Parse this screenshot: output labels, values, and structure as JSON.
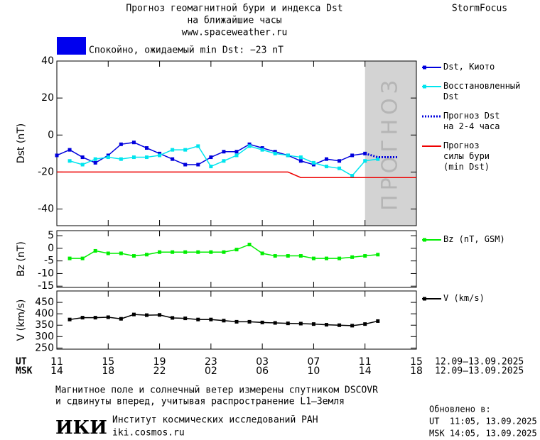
{
  "header": {
    "title": "Прогноз геомагнитной бури и индекса Dst",
    "subtitle": "на ближайшие часы",
    "site": "www.spaceweather.ru",
    "brand": "StormFocus"
  },
  "status": "Спокойно, ожидаемый min Dst: −23 nT",
  "chart_data": [
    {
      "type": "line",
      "y_label": "Dst (nT)",
      "xlim": [
        0,
        28
      ],
      "xticks": [
        0,
        4,
        8,
        12,
        16,
        20,
        24,
        28
      ],
      "ylim": [
        -49,
        40
      ],
      "yticks": [
        -40,
        -20,
        0,
        20,
        40
      ],
      "forecast": {
        "range": [
          24,
          28
        ],
        "label": "ПРОГНОЗ"
      },
      "series": [
        {
          "name": "Dst, Киото",
          "color": "#0000dd",
          "marker": "square",
          "x": [
            0,
            1,
            2,
            3,
            4,
            5,
            6,
            7,
            8,
            9,
            10,
            11,
            12,
            13,
            14,
            15,
            16,
            17,
            18,
            19,
            20,
            21,
            22,
            23,
            24
          ],
          "values": [
            -11,
            -8,
            -12,
            -15,
            -11,
            -5,
            -4,
            -7,
            -10,
            -13,
            -16,
            -16,
            -12,
            -9,
            -9,
            -5,
            -7,
            -9,
            -11,
            -14,
            -16,
            -13,
            -14,
            -11,
            -10
          ]
        },
        {
          "name": "Восстановленный\nDst",
          "color": "#00e5ee",
          "marker": "square",
          "x": [
            1,
            2,
            3,
            4,
            5,
            6,
            7,
            8,
            9,
            10,
            11,
            12,
            13,
            14,
            15,
            16,
            17,
            18,
            19,
            20,
            21,
            22,
            23,
            24,
            25
          ],
          "values": [
            -14,
            -16,
            -13,
            -12,
            -13,
            -12,
            -12,
            -11,
            -8,
            -8,
            -6,
            -17,
            -14,
            -11,
            -6,
            -8,
            -10,
            -11,
            -12,
            -15,
            -17,
            -18,
            -22,
            -14,
            -13
          ]
        },
        {
          "name": "Прогноз Dst\nна 2-4 часа",
          "color": "#0000dd",
          "dash": "dotted",
          "x": [
            24,
            25,
            26,
            26.5
          ],
          "values": [
            -10,
            -12,
            -12,
            -12
          ]
        },
        {
          "name": "Прогноз\nсилы бури\n(min Dst)",
          "color": "#ee0000",
          "x": [
            0,
            18,
            19,
            28
          ],
          "values": [
            -20,
            -20,
            -23,
            -23
          ]
        }
      ]
    },
    {
      "type": "line",
      "y_label": "Bz (nT)",
      "xlim": [
        0,
        28
      ],
      "xticks": [
        0,
        4,
        8,
        12,
        16,
        20,
        24,
        28
      ],
      "ylim": [
        -15.5,
        7
      ],
      "yticks": [
        -15,
        -10,
        -5,
        0,
        5
      ],
      "series": [
        {
          "name": "Bz (nT, GSM)",
          "color": "#00ee00",
          "marker": "square",
          "x": [
            1,
            2,
            3,
            4,
            5,
            6,
            7,
            8,
            9,
            10,
            11,
            12,
            13,
            14,
            15,
            16,
            17,
            18,
            19,
            20,
            21,
            22,
            23,
            24,
            25
          ],
          "values": [
            -4,
            -4,
            -1,
            -2,
            -2,
            -3,
            -2.5,
            -1.5,
            -1.5,
            -1.5,
            -1.5,
            -1.5,
            -1.5,
            -0.5,
            1.5,
            -2,
            -3,
            -3,
            -3,
            -4,
            -4,
            -4,
            -3.5,
            -3,
            -2.5
          ]
        }
      ]
    },
    {
      "type": "line",
      "y_label": "V (km/s)",
      "xlim": [
        0,
        28
      ],
      "xticks": [
        {
          "value": 0,
          "label": "11"
        },
        {
          "value": 4,
          "label": "15"
        },
        {
          "value": 8,
          "label": "19"
        },
        {
          "value": 12,
          "label": "23"
        },
        {
          "value": 16,
          "label": "03"
        },
        {
          "value": 20,
          "label": "07"
        },
        {
          "value": 24,
          "label": "11"
        },
        {
          "value": 28,
          "label": "15"
        }
      ],
      "ylim": [
        245,
        500
      ],
      "yticks": [
        250,
        300,
        350,
        400,
        450
      ],
      "series": [
        {
          "name": "V (km/s)",
          "color": "#000000",
          "marker": "square",
          "x": [
            1,
            2,
            3,
            4,
            5,
            6,
            7,
            8,
            9,
            10,
            11,
            12,
            13,
            14,
            15,
            16,
            17,
            18,
            19,
            20,
            21,
            22,
            23,
            24,
            25
          ],
          "values": [
            375,
            383,
            383,
            385,
            378,
            397,
            394,
            395,
            382,
            380,
            375,
            375,
            370,
            365,
            365,
            362,
            360,
            358,
            357,
            355,
            352,
            350,
            348,
            355,
            368
          ]
        }
      ]
    }
  ],
  "time_axis": {
    "ut_name": "UT",
    "msk_name": "MSK",
    "msk_labels": [
      "14",
      "18",
      "22",
      "02",
      "06",
      "10",
      "14",
      "18"
    ],
    "ut_dates": "12.09–13.09.2025",
    "msk_dates": "12.09–13.09.2025"
  },
  "footer": {
    "note_1": "Магнитное поле и солнечный ветер измерены спутником DSCOVR",
    "note_2": "и сдвинуты вперед, учитывая распространение L1–Земля",
    "logo": "ИКИ",
    "institute": "Институт космических исследований РАН",
    "url": "iki.cosmos.ru",
    "updated": "Обновлено в:",
    "updated_ut": "UT  11:05, 13.09.2025",
    "updated_msk": "MSK 14:05, 13.09.2025"
  }
}
